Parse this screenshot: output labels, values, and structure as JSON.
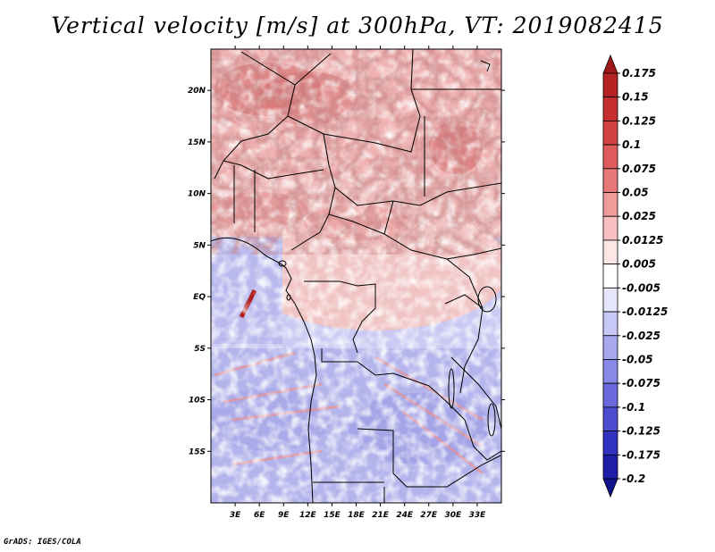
{
  "map": {
    "title": "Vertical velocity [m/s] at 300hPa, VT: 2019082415",
    "credit": "GrADS: IGES/COLA",
    "lon_range": [
      0,
      36
    ],
    "lat_range": [
      -20,
      24
    ],
    "lon_ticks": [
      {
        "value": 3,
        "label": "3E"
      },
      {
        "value": 6,
        "label": "6E"
      },
      {
        "value": 9,
        "label": "9E"
      },
      {
        "value": 12,
        "label": "12E"
      },
      {
        "value": 15,
        "label": "15E"
      },
      {
        "value": 18,
        "label": "18E"
      },
      {
        "value": 21,
        "label": "21E"
      },
      {
        "value": 24,
        "label": "24E"
      },
      {
        "value": 27,
        "label": "27E"
      },
      {
        "value": 30,
        "label": "30E"
      },
      {
        "value": 33,
        "label": "33E"
      }
    ],
    "lat_ticks": [
      {
        "value": 20,
        "label": "20N"
      },
      {
        "value": 15,
        "label": "15N"
      },
      {
        "value": 10,
        "label": "10N"
      },
      {
        "value": 5,
        "label": "5N"
      },
      {
        "value": 0,
        "label": "EQ"
      },
      {
        "value": -5,
        "label": "5S"
      },
      {
        "value": -10,
        "label": "10S"
      },
      {
        "value": -15,
        "label": "15S"
      }
    ],
    "field_regions": [
      {
        "name": "sahel-ascent",
        "lon": [
          3,
          30
        ],
        "lat": [
          8,
          18
        ],
        "sign": "positive",
        "strength": 0.06
      },
      {
        "name": "sudan-vortex",
        "lon": [
          28,
          32
        ],
        "lat": [
          14,
          16
        ],
        "sign": "positive",
        "strength": 0.125
      },
      {
        "name": "sahara-north",
        "lon": [
          8,
          22
        ],
        "lat": [
          18,
          22
        ],
        "sign": "positive",
        "strength": 0.1
      },
      {
        "name": "gulf-of-guinea",
        "lon": [
          0,
          9
        ],
        "lat": [
          -5,
          4
        ],
        "sign": "negative",
        "strength": -0.05
      },
      {
        "name": "southern-africa",
        "lon": [
          0,
          36
        ],
        "lat": [
          -20,
          -6
        ],
        "sign": "negative",
        "strength": -0.075
      }
    ],
    "colorbar": {
      "levels": [
        "0.175",
        "0.15",
        "0.125",
        "0.1",
        "0.075",
        "0.05",
        "0.025",
        "0.0125",
        "0.005",
        "-0.005",
        "-0.0125",
        "-0.025",
        "-0.05",
        "-0.075",
        "-0.1",
        "-0.125",
        "-0.175",
        "-0.2"
      ],
      "colors": [
        "#a01818",
        "#b42222",
        "#c42e2e",
        "#d24242",
        "#de5c5c",
        "#e87878",
        "#f09a9a",
        "#f8c0c0",
        "#fde6e6",
        "#ffffff",
        "#e6e6fb",
        "#c8c8f6",
        "#a8a8ee",
        "#8888e6",
        "#6a6adc",
        "#4c4cd0",
        "#3232c0",
        "#1e1ea8",
        "#12128c"
      ]
    }
  }
}
